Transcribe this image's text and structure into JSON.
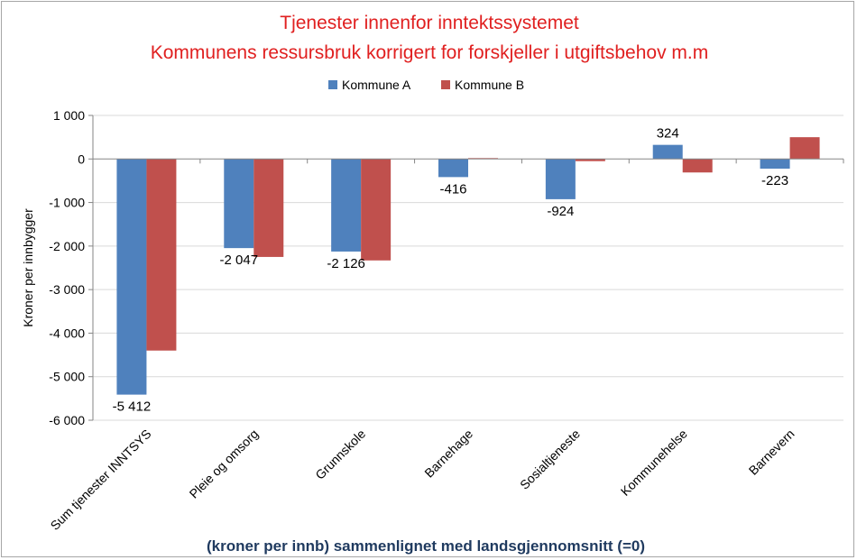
{
  "chart_data": {
    "type": "bar",
    "title_lines": [
      "Tjenester innenfor inntektssystemet",
      "Kommunens ressursbruk korrigert for  forskjeller i utgiftsbehov m.m"
    ],
    "categories": [
      "Sum tjenester INNTSYS",
      "Pleie og omsorg",
      "Grunnskole",
      "Barnehage",
      "Sosialtjeneste",
      "Kommunehelse",
      "Barnevern"
    ],
    "series": [
      {
        "name": "Kommune A",
        "values": [
          -5412,
          -2047,
          -2126,
          -416,
          -924,
          324,
          -223
        ]
      },
      {
        "name": "Kommune B",
        "values": [
          -4400,
          -2250,
          -2330,
          20,
          -50,
          -310,
          500
        ]
      }
    ],
    "data_labels": [
      "-5 412",
      "-2 047",
      "-2 126",
      "-416",
      "-924",
      "324",
      "-223"
    ],
    "ylabel": "Kroner per innbygger",
    "xlabel": "(kroner per innb) sammenlignet med landsgjennomsnitt (=0)",
    "ylim": [
      -6000,
      1000
    ],
    "yticks": [
      1000,
      0,
      -1000,
      -2000,
      -3000,
      -4000,
      -5000,
      -6000
    ],
    "ytick_labels": [
      "1 000",
      "0",
      "-1 000",
      "-2 000",
      "-3 000",
      "-4 000",
      "-5 000",
      "-6 000"
    ],
    "legend_position": "top-center",
    "gridlines": true
  },
  "colors": {
    "series_a": "#4f81bd",
    "series_b": "#c0504d",
    "title": "#e02020",
    "xlabel": "#1f3a5f",
    "grid": "#d9d9d9",
    "axis": "#868686",
    "text": "#000000"
  }
}
